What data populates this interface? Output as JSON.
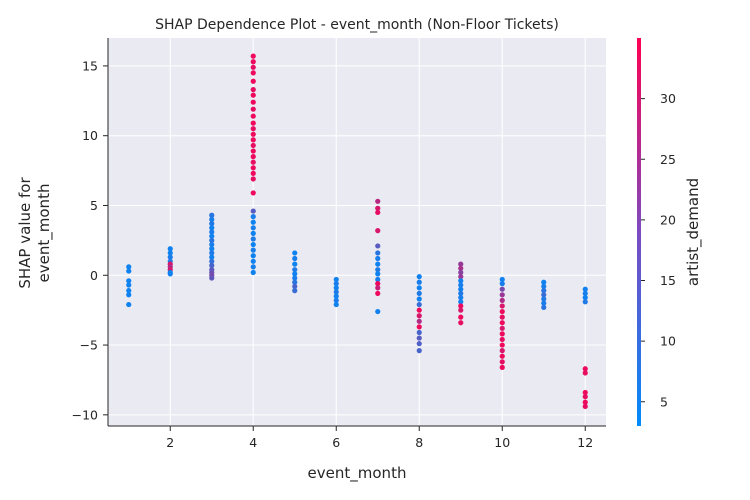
{
  "chart_data": {
    "type": "scatter",
    "title": "SHAP Dependence Plot - event_month (Non-Floor Tickets)",
    "xlabel": "event_month",
    "ylabel_lines": [
      "SHAP value for",
      "event_month"
    ],
    "xlim": [
      0.5,
      12.5
    ],
    "ylim": [
      -10.8,
      17.0
    ],
    "x_ticks": [
      2,
      4,
      6,
      8,
      10,
      12
    ],
    "y_ticks": [
      -10,
      -5,
      0,
      5,
      10,
      15
    ],
    "y_tick_labels": [
      "−10",
      "−5",
      "0",
      "5",
      "10",
      "15"
    ],
    "grid": true,
    "colorbar": {
      "label": "artist_demand",
      "range": [
        3,
        35
      ],
      "ticks": [
        5,
        10,
        15,
        20,
        25,
        30
      ],
      "colors": [
        "#008bfb",
        "#ff0052"
      ]
    },
    "points": [
      {
        "x": 1,
        "y": 0.6,
        "c": 5
      },
      {
        "x": 1,
        "y": 0.3,
        "c": 5
      },
      {
        "x": 1,
        "y": -0.4,
        "c": 5
      },
      {
        "x": 1,
        "y": -0.7,
        "c": 5
      },
      {
        "x": 1,
        "y": -1.1,
        "c": 5
      },
      {
        "x": 1,
        "y": -1.4,
        "c": 5
      },
      {
        "x": 1,
        "y": -2.1,
        "c": 5
      },
      {
        "x": 2,
        "y": 1.9,
        "c": 5
      },
      {
        "x": 2,
        "y": 1.6,
        "c": 5
      },
      {
        "x": 2,
        "y": 1.3,
        "c": 6
      },
      {
        "x": 2,
        "y": 1.0,
        "c": 7
      },
      {
        "x": 2,
        "y": 0.8,
        "c": 30
      },
      {
        "x": 2,
        "y": 0.6,
        "c": 25
      },
      {
        "x": 2,
        "y": 0.4,
        "c": 30
      },
      {
        "x": 2,
        "y": 0.2,
        "c": 5
      },
      {
        "x": 2,
        "y": 0.1,
        "c": 5
      },
      {
        "x": 3,
        "y": 4.3,
        "c": 8
      },
      {
        "x": 3,
        "y": 4.0,
        "c": 6
      },
      {
        "x": 3,
        "y": 3.7,
        "c": 7
      },
      {
        "x": 3,
        "y": 3.4,
        "c": 5
      },
      {
        "x": 3,
        "y": 3.1,
        "c": 6
      },
      {
        "x": 3,
        "y": 2.8,
        "c": 5
      },
      {
        "x": 3,
        "y": 2.5,
        "c": 8
      },
      {
        "x": 3,
        "y": 2.2,
        "c": 6
      },
      {
        "x": 3,
        "y": 1.9,
        "c": 5
      },
      {
        "x": 3,
        "y": 1.6,
        "c": 7
      },
      {
        "x": 3,
        "y": 1.3,
        "c": 5
      },
      {
        "x": 3,
        "y": 1.0,
        "c": 9
      },
      {
        "x": 3,
        "y": 0.7,
        "c": 12
      },
      {
        "x": 3,
        "y": 0.4,
        "c": 14
      },
      {
        "x": 3,
        "y": 0.2,
        "c": 16
      },
      {
        "x": 3,
        "y": 0.0,
        "c": 18
      },
      {
        "x": 3,
        "y": -0.2,
        "c": 15
      },
      {
        "x": 4,
        "y": 15.7,
        "c": 33
      },
      {
        "x": 4,
        "y": 15.3,
        "c": 33
      },
      {
        "x": 4,
        "y": 14.9,
        "c": 32
      },
      {
        "x": 4,
        "y": 14.5,
        "c": 33
      },
      {
        "x": 4,
        "y": 13.9,
        "c": 33
      },
      {
        "x": 4,
        "y": 13.3,
        "c": 32
      },
      {
        "x": 4,
        "y": 12.9,
        "c": 33
      },
      {
        "x": 4,
        "y": 12.4,
        "c": 33
      },
      {
        "x": 4,
        "y": 11.9,
        "c": 32
      },
      {
        "x": 4,
        "y": 11.4,
        "c": 33
      },
      {
        "x": 4,
        "y": 10.9,
        "c": 33
      },
      {
        "x": 4,
        "y": 10.5,
        "c": 32
      },
      {
        "x": 4,
        "y": 10.1,
        "c": 33
      },
      {
        "x": 4,
        "y": 9.7,
        "c": 33
      },
      {
        "x": 4,
        "y": 9.3,
        "c": 32
      },
      {
        "x": 4,
        "y": 8.9,
        "c": 33
      },
      {
        "x": 4,
        "y": 8.5,
        "c": 33
      },
      {
        "x": 4,
        "y": 8.1,
        "c": 32
      },
      {
        "x": 4,
        "y": 7.7,
        "c": 33
      },
      {
        "x": 4,
        "y": 7.3,
        "c": 33
      },
      {
        "x": 4,
        "y": 6.9,
        "c": 32
      },
      {
        "x": 4,
        "y": 5.9,
        "c": 33
      },
      {
        "x": 4,
        "y": 4.6,
        "c": 14
      },
      {
        "x": 4,
        "y": 4.2,
        "c": 6
      },
      {
        "x": 4,
        "y": 3.8,
        "c": 5
      },
      {
        "x": 4,
        "y": 3.4,
        "c": 6
      },
      {
        "x": 4,
        "y": 3.0,
        "c": 5
      },
      {
        "x": 4,
        "y": 2.6,
        "c": 7
      },
      {
        "x": 4,
        "y": 2.2,
        "c": 5
      },
      {
        "x": 4,
        "y": 1.8,
        "c": 6
      },
      {
        "x": 4,
        "y": 1.4,
        "c": 5
      },
      {
        "x": 4,
        "y": 1.0,
        "c": 5
      },
      {
        "x": 4,
        "y": 0.6,
        "c": 6
      },
      {
        "x": 4,
        "y": 0.2,
        "c": 5
      },
      {
        "x": 5,
        "y": 1.6,
        "c": 5
      },
      {
        "x": 5,
        "y": 1.2,
        "c": 6
      },
      {
        "x": 5,
        "y": 0.8,
        "c": 5
      },
      {
        "x": 5,
        "y": 0.4,
        "c": 7
      },
      {
        "x": 5,
        "y": 0.1,
        "c": 5
      },
      {
        "x": 5,
        "y": -0.2,
        "c": 6
      },
      {
        "x": 5,
        "y": -0.5,
        "c": 8
      },
      {
        "x": 5,
        "y": -0.8,
        "c": 12
      },
      {
        "x": 5,
        "y": -1.1,
        "c": 10
      },
      {
        "x": 6,
        "y": -0.3,
        "c": 5
      },
      {
        "x": 6,
        "y": -0.6,
        "c": 6
      },
      {
        "x": 6,
        "y": -0.9,
        "c": 5
      },
      {
        "x": 6,
        "y": -1.2,
        "c": 7
      },
      {
        "x": 6,
        "y": -1.5,
        "c": 5
      },
      {
        "x": 6,
        "y": -1.8,
        "c": 6
      },
      {
        "x": 6,
        "y": -2.1,
        "c": 5
      },
      {
        "x": 7,
        "y": 5.3,
        "c": 26
      },
      {
        "x": 7,
        "y": 4.8,
        "c": 30
      },
      {
        "x": 7,
        "y": 4.5,
        "c": 32
      },
      {
        "x": 7,
        "y": 3.2,
        "c": 30
      },
      {
        "x": 7,
        "y": 2.1,
        "c": 14
      },
      {
        "x": 7,
        "y": 1.6,
        "c": 8
      },
      {
        "x": 7,
        "y": 1.2,
        "c": 6
      },
      {
        "x": 7,
        "y": 0.8,
        "c": 5
      },
      {
        "x": 7,
        "y": 0.4,
        "c": 7
      },
      {
        "x": 7,
        "y": 0.1,
        "c": 5
      },
      {
        "x": 7,
        "y": -0.3,
        "c": 6
      },
      {
        "x": 7,
        "y": -0.6,
        "c": 33
      },
      {
        "x": 7,
        "y": -0.9,
        "c": 28
      },
      {
        "x": 7,
        "y": -1.3,
        "c": 33
      },
      {
        "x": 7,
        "y": -2.6,
        "c": 5
      },
      {
        "x": 8,
        "y": -0.1,
        "c": 5
      },
      {
        "x": 8,
        "y": -0.5,
        "c": 6
      },
      {
        "x": 8,
        "y": -0.9,
        "c": 5
      },
      {
        "x": 8,
        "y": -1.3,
        "c": 7
      },
      {
        "x": 8,
        "y": -1.7,
        "c": 5
      },
      {
        "x": 8,
        "y": -2.1,
        "c": 10
      },
      {
        "x": 8,
        "y": -2.5,
        "c": 33
      },
      {
        "x": 8,
        "y": -2.9,
        "c": 30
      },
      {
        "x": 8,
        "y": -3.3,
        "c": 25
      },
      {
        "x": 8,
        "y": -3.7,
        "c": 33
      },
      {
        "x": 8,
        "y": -4.1,
        "c": 12
      },
      {
        "x": 8,
        "y": -4.5,
        "c": 14
      },
      {
        "x": 8,
        "y": -4.9,
        "c": 13
      },
      {
        "x": 8,
        "y": -5.4,
        "c": 12
      },
      {
        "x": 9,
        "y": 0.8,
        "c": 22
      },
      {
        "x": 9,
        "y": 0.5,
        "c": 24
      },
      {
        "x": 9,
        "y": 0.2,
        "c": 20
      },
      {
        "x": 9,
        "y": -0.1,
        "c": 22
      },
      {
        "x": 9,
        "y": -0.4,
        "c": 5
      },
      {
        "x": 9,
        "y": -0.7,
        "c": 6
      },
      {
        "x": 9,
        "y": -1.0,
        "c": 5
      },
      {
        "x": 9,
        "y": -1.3,
        "c": 7
      },
      {
        "x": 9,
        "y": -1.6,
        "c": 6
      },
      {
        "x": 9,
        "y": -1.9,
        "c": 5
      },
      {
        "x": 9,
        "y": -2.2,
        "c": 33
      },
      {
        "x": 9,
        "y": -2.5,
        "c": 30
      },
      {
        "x": 9,
        "y": -3.0,
        "c": 33
      },
      {
        "x": 9,
        "y": -3.4,
        "c": 32
      },
      {
        "x": 10,
        "y": -0.3,
        "c": 5
      },
      {
        "x": 10,
        "y": -0.6,
        "c": 6
      },
      {
        "x": 10,
        "y": -1.0,
        "c": 18
      },
      {
        "x": 10,
        "y": -1.4,
        "c": 22
      },
      {
        "x": 10,
        "y": -1.8,
        "c": 25
      },
      {
        "x": 10,
        "y": -2.2,
        "c": 30
      },
      {
        "x": 10,
        "y": -2.6,
        "c": 33
      },
      {
        "x": 10,
        "y": -3.0,
        "c": 32
      },
      {
        "x": 10,
        "y": -3.4,
        "c": 33
      },
      {
        "x": 10,
        "y": -3.8,
        "c": 30
      },
      {
        "x": 10,
        "y": -4.2,
        "c": 33
      },
      {
        "x": 10,
        "y": -4.6,
        "c": 32
      },
      {
        "x": 10,
        "y": -5.0,
        "c": 33
      },
      {
        "x": 10,
        "y": -5.4,
        "c": 30
      },
      {
        "x": 10,
        "y": -5.8,
        "c": 33
      },
      {
        "x": 10,
        "y": -6.2,
        "c": 32
      },
      {
        "x": 10,
        "y": -6.6,
        "c": 33
      },
      {
        "x": 11,
        "y": -0.5,
        "c": 5
      },
      {
        "x": 11,
        "y": -0.8,
        "c": 6
      },
      {
        "x": 11,
        "y": -1.1,
        "c": 8
      },
      {
        "x": 11,
        "y": -1.4,
        "c": 10
      },
      {
        "x": 11,
        "y": -1.7,
        "c": 7
      },
      {
        "x": 11,
        "y": -2.0,
        "c": 6
      },
      {
        "x": 11,
        "y": -2.3,
        "c": 8
      },
      {
        "x": 12,
        "y": -1.0,
        "c": 5
      },
      {
        "x": 12,
        "y": -1.3,
        "c": 6
      },
      {
        "x": 12,
        "y": -1.6,
        "c": 5
      },
      {
        "x": 12,
        "y": -1.9,
        "c": 7
      },
      {
        "x": 12,
        "y": -6.7,
        "c": 33
      },
      {
        "x": 12,
        "y": -7.0,
        "c": 32
      },
      {
        "x": 12,
        "y": -8.4,
        "c": 33
      },
      {
        "x": 12,
        "y": -8.7,
        "c": 32
      },
      {
        "x": 12,
        "y": -9.1,
        "c": 33
      },
      {
        "x": 12,
        "y": -9.4,
        "c": 32
      }
    ]
  }
}
